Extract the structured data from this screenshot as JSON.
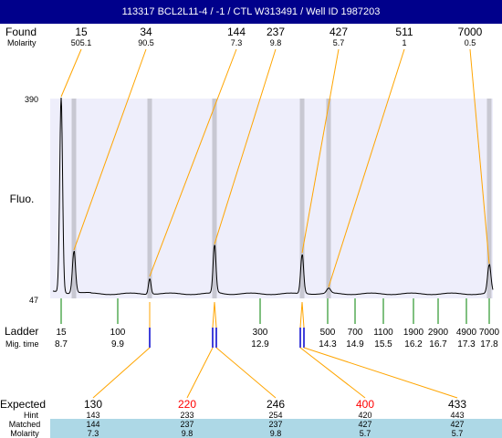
{
  "header": {
    "title": "113317  BCL2L11-4 / -1 / CTL W313491 / Well ID 1987203"
  },
  "labels": {
    "found": "Found",
    "molarity": "Molarity",
    "fluo": "Fluo.",
    "ladder": "Ladder",
    "mig_time": "Mig. time",
    "expected": "Expected",
    "hint": "Hint",
    "matched": "Matched",
    "molarity_bottom": "Molarity",
    "y_top": "390",
    "y_bottom": "47"
  },
  "colors": {
    "title_bg": "#00008b",
    "plot_bg": "#eeeefb",
    "marker_band": "#c8c8d2",
    "callout_line": "#ffa500",
    "ladder_tick": "#008000",
    "ladder_marker": "#0000cd",
    "expected_highlight": "#ff0000",
    "table_band": "#add8e6"
  },
  "chart_data": {
    "type": "line",
    "y_axis_ticks": [
      47,
      390
    ],
    "found_peaks": [
      {
        "size": "15",
        "molarity": "505.1",
        "height": 1.0
      },
      {
        "size": "34",
        "molarity": "90.5",
        "height": 0.215
      },
      {
        "size": "144",
        "molarity": "7.3",
        "height": 0.08
      },
      {
        "size": "237",
        "molarity": "9.8",
        "height": 0.245
      },
      {
        "size": "427",
        "molarity": "5.7",
        "height": 0.2
      },
      {
        "size": "511",
        "molarity": "1",
        "height": 0.025
      },
      {
        "size": "7000",
        "molarity": "0.5",
        "height": 0.145
      }
    ],
    "ladder": [
      {
        "size": "15",
        "mig_time": "8.7"
      },
      {
        "size": "100",
        "mig_time": "9.9"
      },
      {
        "size": "300",
        "mig_time": "12.9"
      },
      {
        "size": "500",
        "mig_time": "14.3"
      },
      {
        "size": "700",
        "mig_time": "14.9"
      },
      {
        "size": "1100",
        "mig_time": "15.5"
      },
      {
        "size": "1900",
        "mig_time": "16.2"
      },
      {
        "size": "2900",
        "mig_time": "16.7"
      },
      {
        "size": "4900",
        "mig_time": "17.3"
      },
      {
        "size": "7000",
        "mig_time": "17.8"
      }
    ],
    "expected": [
      {
        "expected": "130",
        "hint": "143",
        "matched": "144",
        "molarity": "7.3",
        "highlight": false
      },
      {
        "expected": "220",
        "hint": "233",
        "matched": "237",
        "molarity": "9.8",
        "highlight": true
      },
      {
        "expected": "246",
        "hint": "254",
        "matched": "237",
        "molarity": "9.8",
        "highlight": false
      },
      {
        "expected": "400",
        "hint": "420",
        "matched": "427",
        "molarity": "5.7",
        "highlight": true
      },
      {
        "expected": "433",
        "hint": "443",
        "matched": "427",
        "molarity": "5.7",
        "highlight": false
      }
    ]
  }
}
